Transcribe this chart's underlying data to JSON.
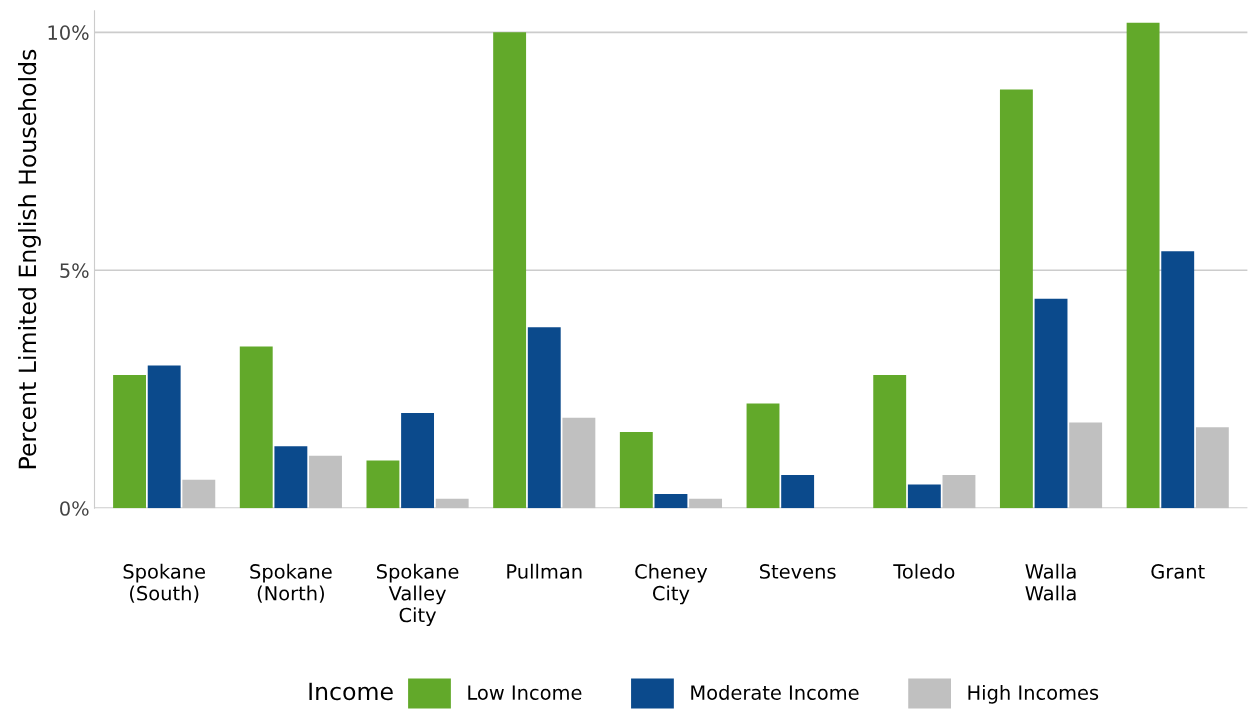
{
  "chart_data": {
    "type": "bar",
    "ylabel": "Percent Limited English Households",
    "legend_title": "Income",
    "categories": [
      "Spokane\n(South)",
      "Spokane\n(North)",
      "Spokane\nValley\nCity",
      "Pullman",
      "Cheney\nCity",
      "Stevens",
      "Toledo",
      "Walla\nWalla",
      "Grant"
    ],
    "series": [
      {
        "name": "Low Income",
        "color": "#62a92a",
        "values": [
          2.8,
          3.4,
          1.0,
          10.0,
          1.6,
          2.2,
          2.8,
          8.8,
          10.2
        ]
      },
      {
        "name": "Moderate Income",
        "color": "#0b4a8c",
        "values": [
          3.0,
          1.3,
          2.0,
          3.8,
          0.3,
          0.7,
          0.5,
          4.4,
          5.4
        ]
      },
      {
        "name": "High Incomes",
        "color": "#c0c0c0",
        "values": [
          0.6,
          1.1,
          0.2,
          1.9,
          0.2,
          0.0,
          0.7,
          1.8,
          1.7
        ]
      }
    ],
    "ylim": [
      0,
      10.45
    ],
    "yticks": [
      {
        "value": 0,
        "label": "0%"
      },
      {
        "value": 5,
        "label": "5%"
      },
      {
        "value": 10,
        "label": "10%"
      }
    ],
    "grid": "y",
    "legend": "bottom"
  }
}
